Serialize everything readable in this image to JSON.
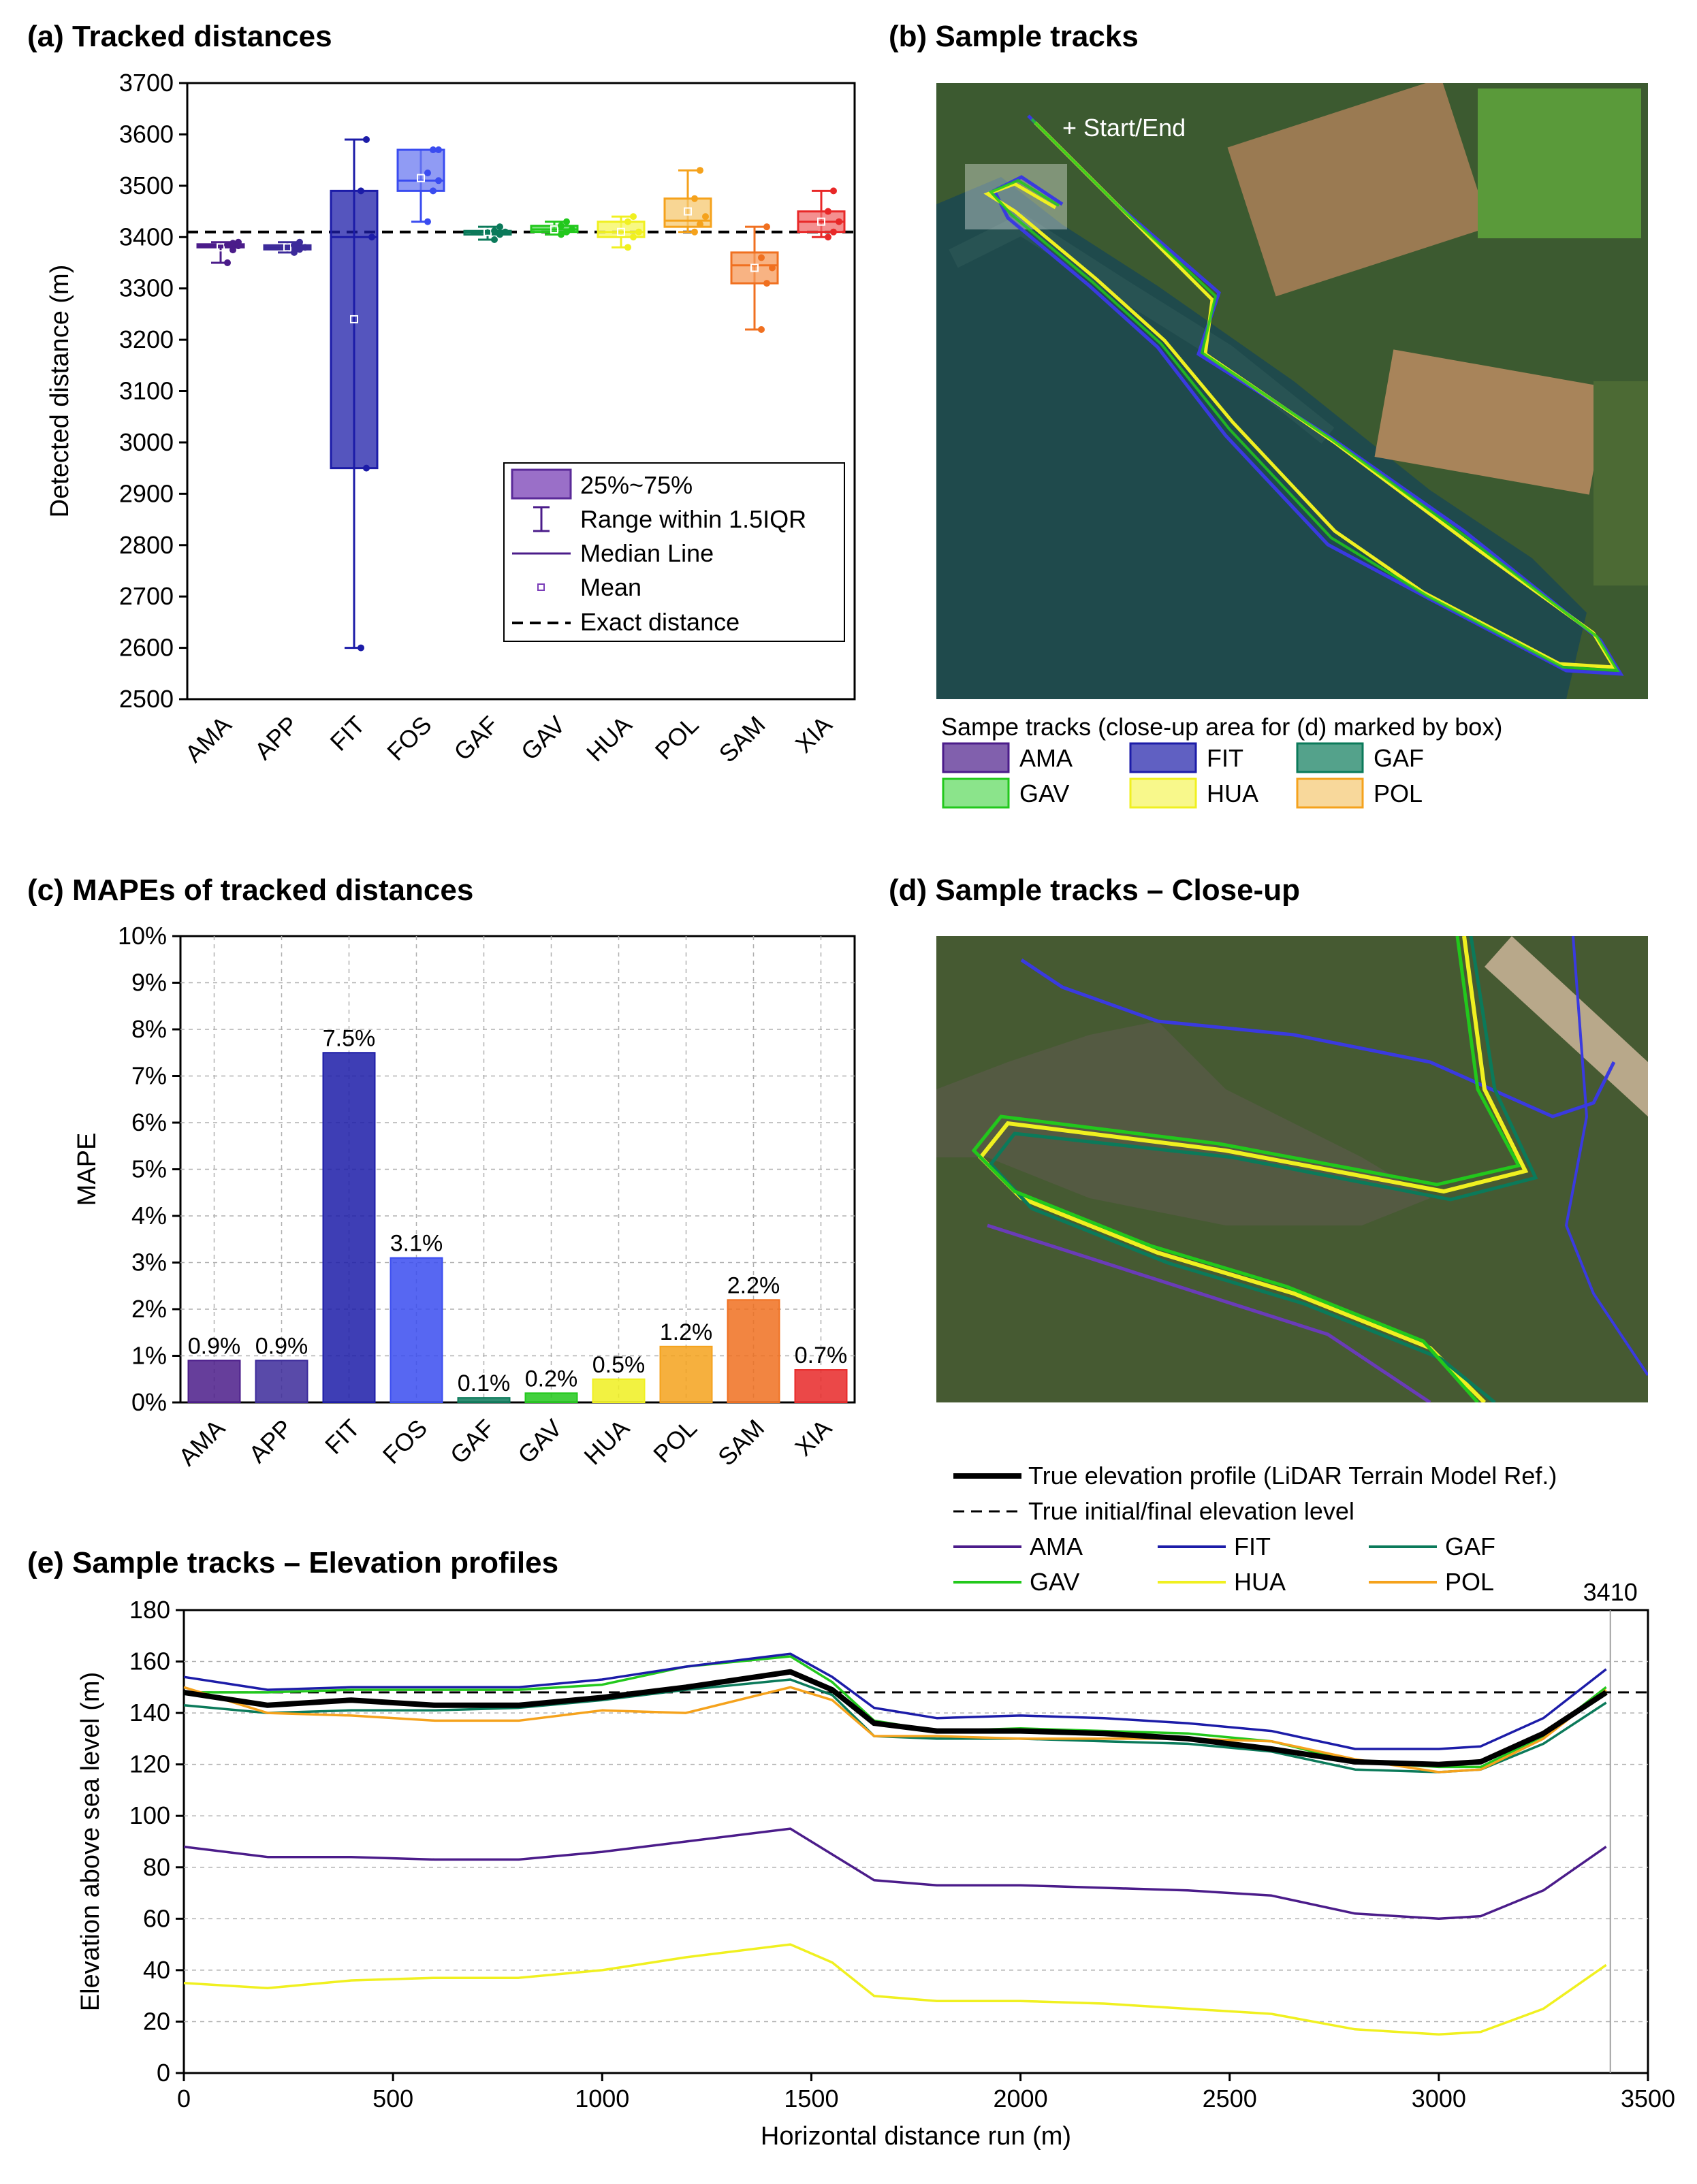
{
  "colors": {
    "AMA": "#4b1c8a",
    "APP": "#3c2a9a",
    "FIT": "#1c1ca8",
    "FOS": "#3a4cf0",
    "GAF": "#0b7a5a",
    "GAV": "#22c81c",
    "HUA": "#f0f020",
    "POL": "#f5a21c",
    "SAM": "#f07020",
    "XIA": "#e82828",
    "FOS_box": "#6b7af0",
    "SAM_box": "#f59a5a",
    "XIA_box": "#f06a6a",
    "GAV_box": "#5ad85a",
    "HUA_box": "#f5f55a",
    "POL_box": "#f5c870"
  },
  "panel_a": {
    "title": "(a) Tracked distances",
    "legend": {
      "box": "25%~75%",
      "range": "Range within 1.5IQR",
      "median": "Median Line",
      "mean": "Mean",
      "exact": "Exact distance"
    }
  },
  "panel_b": {
    "title": "(b) Sample tracks",
    "start_label": "+ Start/End",
    "legend_title": "Sampe tracks (close-up area for (d) marked by box)",
    "legend_items": [
      "AMA",
      "FIT",
      "GAF",
      "GAV",
      "HUA",
      "POL"
    ]
  },
  "panel_c": {
    "title": "(c) MAPEs of tracked distances"
  },
  "panel_d": {
    "title": "(d) Sample tracks – Close-up"
  },
  "panel_e": {
    "title": "(e) Sample tracks – Elevation profiles",
    "legend": {
      "true_profile": "True elevation profile (LiDAR Terrain Model Ref.)",
      "true_level": "True initial/final elevation level",
      "items": [
        "AMA",
        "FIT",
        "GAF",
        "GAV",
        "HUA",
        "POL"
      ]
    },
    "marker_label": "3410"
  },
  "chart_data": [
    {
      "type": "box",
      "title": "(a) Tracked distances",
      "ylabel": "Detected distance (m)",
      "ylim": [
        2500,
        3700
      ],
      "yticks": [
        2500,
        2600,
        2700,
        2800,
        2900,
        3000,
        3100,
        3200,
        3300,
        3400,
        3500,
        3600,
        3700
      ],
      "reference_line": 3410,
      "categories": [
        "AMA",
        "APP",
        "FIT",
        "FOS",
        "GAF",
        "GAV",
        "HUA",
        "POL",
        "SAM",
        "XIA"
      ],
      "boxes": [
        {
          "name": "AMA",
          "q1": 3380,
          "median": 3383,
          "q3": 3386,
          "min": 3350,
          "max": 3390,
          "mean": 3380,
          "points": [
            3350,
            3375,
            3383,
            3385,
            3388,
            3390
          ]
        },
        {
          "name": "APP",
          "q1": 3376,
          "median": 3380,
          "q3": 3384,
          "min": 3370,
          "max": 3390,
          "mean": 3380,
          "points": [
            3370,
            3376,
            3380,
            3384,
            3390
          ]
        },
        {
          "name": "FIT",
          "q1": 2950,
          "median": 3400,
          "q3": 3490,
          "min": 2600,
          "max": 3590,
          "mean": 3240,
          "points": [
            2600,
            2950,
            3400,
            3490,
            3590
          ]
        },
        {
          "name": "FOS",
          "q1": 3490,
          "median": 3510,
          "q3": 3570,
          "min": 3430,
          "max": 3570,
          "mean": 3515,
          "points": [
            3430,
            3490,
            3510,
            3525,
            3570,
            3570
          ]
        },
        {
          "name": "GAF",
          "q1": 3405,
          "median": 3410,
          "q3": 3412,
          "min": 3395,
          "max": 3420,
          "mean": 3410,
          "points": [
            3395,
            3405,
            3410,
            3412,
            3420
          ]
        },
        {
          "name": "GAV",
          "q1": 3410,
          "median": 3415,
          "q3": 3422,
          "min": 3405,
          "max": 3430,
          "mean": 3415,
          "points": [
            3405,
            3410,
            3415,
            3422,
            3430
          ]
        },
        {
          "name": "HUA",
          "q1": 3400,
          "median": 3410,
          "q3": 3430,
          "min": 3380,
          "max": 3440,
          "mean": 3410,
          "points": [
            3380,
            3400,
            3410,
            3430,
            3440
          ]
        },
        {
          "name": "POL",
          "q1": 3420,
          "median": 3432,
          "q3": 3475,
          "min": 3410,
          "max": 3530,
          "mean": 3450,
          "points": [
            3410,
            3425,
            3440,
            3475,
            3530
          ]
        },
        {
          "name": "SAM",
          "q1": 3310,
          "median": 3345,
          "q3": 3370,
          "min": 3220,
          "max": 3420,
          "mean": 3340,
          "points": [
            3220,
            3310,
            3340,
            3360,
            3420
          ]
        },
        {
          "name": "XIA",
          "q1": 3410,
          "median": 3430,
          "q3": 3450,
          "min": 3400,
          "max": 3490,
          "mean": 3430,
          "points": [
            3400,
            3410,
            3430,
            3450,
            3490
          ]
        }
      ]
    },
    {
      "type": "bar",
      "title": "(c) MAPEs of tracked distances",
      "ylabel": "MAPE",
      "ylim": [
        0,
        10
      ],
      "yticks": [
        "0%",
        "1%",
        "2%",
        "3%",
        "4%",
        "5%",
        "6%",
        "7%",
        "8%",
        "9%",
        "10%"
      ],
      "categories": [
        "AMA",
        "APP",
        "FIT",
        "FOS",
        "GAF",
        "GAV",
        "HUA",
        "POL",
        "SAM",
        "XIA"
      ],
      "values": [
        0.9,
        0.9,
        7.5,
        3.1,
        0.1,
        0.2,
        0.5,
        1.2,
        2.2,
        0.7
      ],
      "labels": [
        "0.9%",
        "0.9%",
        "7.5%",
        "3.1%",
        "0.1%",
        "0.2%",
        "0.5%",
        "1.2%",
        "2.2%",
        "0.7%"
      ]
    },
    {
      "type": "line",
      "title": "(e) Sample tracks – Elevation profiles",
      "xlabel": "Horizontal distance run (m)",
      "ylabel": "Elevation above sea level (m)",
      "xlim": [
        0,
        3500
      ],
      "ylim": [
        0,
        180
      ],
      "xticks": [
        0,
        500,
        1000,
        1500,
        2000,
        2500,
        3000,
        3500
      ],
      "yticks": [
        0,
        20,
        40,
        60,
        80,
        100,
        120,
        140,
        160,
        180
      ],
      "reference_level": 148,
      "vertical_marker": 3410,
      "x": [
        0,
        200,
        400,
        600,
        800,
        1000,
        1200,
        1450,
        1550,
        1650,
        1800,
        2000,
        2200,
        2400,
        2600,
        2800,
        3000,
        3100,
        3250,
        3400
      ],
      "series": [
        {
          "name": "True elevation profile (LiDAR Terrain Model Ref.)",
          "values": [
            148,
            143,
            145,
            143,
            143,
            146,
            150,
            156,
            149,
            136,
            133,
            133,
            132,
            130,
            126,
            121,
            120,
            121,
            132,
            148
          ]
        },
        {
          "name": "AMA",
          "values": [
            88,
            84,
            84,
            83,
            83,
            86,
            90,
            95,
            85,
            75,
            73,
            73,
            72,
            71,
            69,
            62,
            60,
            61,
            71,
            88
          ]
        },
        {
          "name": "FIT",
          "values": [
            154,
            149,
            150,
            150,
            150,
            153,
            158,
            163,
            154,
            142,
            138,
            139,
            138,
            136,
            133,
            126,
            126,
            127,
            138,
            157
          ]
        },
        {
          "name": "GAF",
          "values": [
            143,
            140,
            141,
            141,
            142,
            145,
            149,
            153,
            147,
            131,
            130,
            130,
            129,
            128,
            125,
            118,
            117,
            118,
            128,
            144
          ]
        },
        {
          "name": "GAV",
          "values": [
            148,
            148,
            149,
            149,
            149,
            151,
            158,
            162,
            152,
            137,
            133,
            134,
            133,
            132,
            129,
            121,
            119,
            119,
            131,
            150
          ]
        },
        {
          "name": "HUA",
          "values": [
            35,
            33,
            36,
            37,
            37,
            40,
            45,
            50,
            43,
            30,
            28,
            28,
            27,
            25,
            23,
            17,
            15,
            16,
            25,
            42
          ]
        },
        {
          "name": "POL",
          "values": [
            150,
            140,
            139,
            137,
            137,
            141,
            140,
            150,
            145,
            131,
            131,
            130,
            130,
            130,
            129,
            122,
            117,
            118,
            130,
            149
          ]
        }
      ]
    }
  ]
}
